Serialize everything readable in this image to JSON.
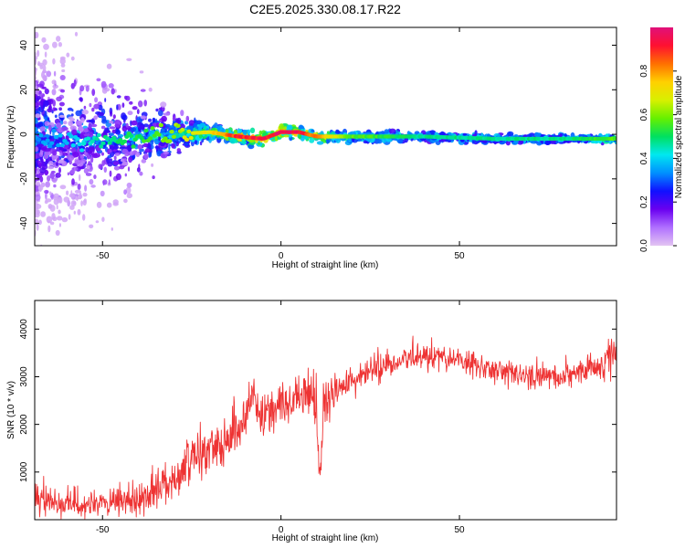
{
  "title": "C2E5.2025.330.08.17.R22",
  "colors": {
    "snr_line": "#ee3333",
    "colorbar": [
      "#e3c4f2",
      "#b070ff",
      "#6a00f0",
      "#1010ff",
      "#0090ff",
      "#00e8f0",
      "#00e060",
      "#66f000",
      "#d8f000",
      "#ffd000",
      "#ff7000",
      "#ff1030",
      "#e0107a"
    ]
  },
  "chart_data": [
    {
      "type": "heatmap",
      "title": "C2E5.2025.330.08.17.R22",
      "xlabel": "Height of straight line (km)",
      "ylabel": "Frequency (Hz)",
      "xlim": [
        -69,
        94
      ],
      "ylim": [
        -50,
        48
      ],
      "xticks": [
        -50,
        0,
        50
      ],
      "yticks": [
        -40,
        -20,
        0,
        20,
        40
      ],
      "xtick_labels": [
        "-50",
        "0",
        "50"
      ],
      "ytick_labels": [
        "-40",
        "-20",
        "0",
        "20",
        "40"
      ],
      "colorbar": {
        "label": "Normalized spectral amplitude",
        "range": [
          0,
          1
        ],
        "ticks": [
          0.0,
          0.2,
          0.4,
          0.6,
          0.8
        ],
        "tick_labels": [
          "0.0",
          "0.2",
          "0.4",
          "0.6",
          "0.8"
        ]
      },
      "ridge": {
        "x": [
          -69,
          -60,
          -50,
          -40,
          -30,
          -20,
          -12,
          -5,
          0,
          5,
          10,
          20,
          40,
          60,
          80,
          94
        ],
        "frequency": [
          -3,
          -4,
          -3,
          -1,
          0,
          1,
          -1,
          -2,
          1,
          1,
          -1,
          -1,
          -1,
          -2,
          -2,
          -2
        ],
        "amplitude": [
          0.35,
          0.4,
          0.5,
          0.55,
          0.65,
          0.75,
          0.95,
          0.98,
          1.0,
          0.98,
          0.85,
          0.6,
          0.5,
          0.5,
          0.5,
          0.6
        ]
      },
      "scatter_spread_hz": {
        "x": [
          -69,
          -50,
          -40,
          -30,
          -20,
          94
        ],
        "spread": [
          45,
          40,
          30,
          10,
          4,
          2
        ]
      }
    },
    {
      "type": "line",
      "xlabel": "Height of straight line (km)",
      "ylabel": "SNR (10 * v/v)",
      "xlim": [
        -69,
        94
      ],
      "ylim": [
        0,
        4600
      ],
      "xticks": [
        -50,
        0,
        50
      ],
      "yticks": [
        1000,
        2000,
        3000,
        4000
      ],
      "xtick_labels": [
        "-50",
        "0",
        "50"
      ],
      "ytick_labels": [
        "1000",
        "2000",
        "3000",
        "4000"
      ],
      "series": [
        {
          "name": "SNR",
          "x": [
            -69,
            -60,
            -50,
            -40,
            -35,
            -30,
            -25,
            -20,
            -15,
            -10,
            -9,
            -5,
            0,
            5,
            8,
            10,
            11,
            12,
            15,
            20,
            25,
            30,
            35,
            40,
            45,
            50,
            55,
            60,
            65,
            70,
            75,
            80,
            85,
            90,
            94
          ],
          "mean": [
            400,
            350,
            300,
            400,
            650,
            900,
            1200,
            1500,
            1700,
            2100,
            2650,
            2200,
            2400,
            2500,
            2650,
            2500,
            800,
            2400,
            2700,
            2900,
            3100,
            3250,
            3350,
            3450,
            3400,
            3350,
            3250,
            3100,
            3050,
            3000,
            3000,
            3050,
            3100,
            3250,
            3600
          ],
          "spread": [
            300,
            250,
            250,
            300,
            350,
            400,
            450,
            500,
            500,
            500,
            400,
            400,
            400,
            400,
            450,
            600,
            300,
            450,
            350,
            300,
            300,
            250,
            250,
            250,
            250,
            250,
            250,
            250,
            250,
            250,
            250,
            250,
            250,
            300,
            600
          ]
        }
      ]
    }
  ]
}
